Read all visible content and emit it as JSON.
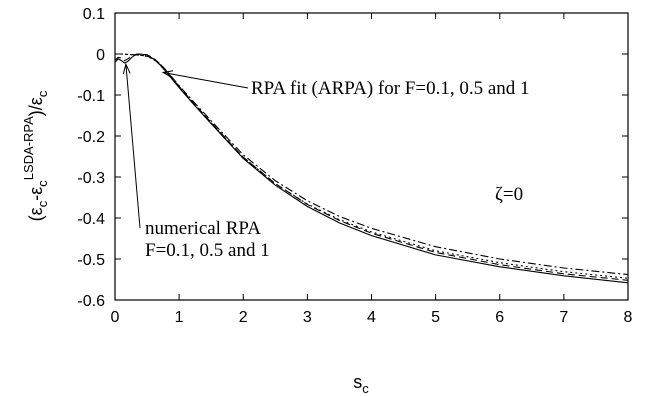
{
  "chart_data": {
    "type": "line",
    "xlabel": "s",
    "xlabel_sub": "c",
    "ylabel_parts": {
      "open": "(ε",
      "sub1": "c",
      "dash": "-ε",
      "sub2": "c",
      "sup": "LSDA-RPA",
      "close": ")/ε",
      "sub3": "c"
    },
    "xlim": [
      0,
      8
    ],
    "ylim": [
      -0.6,
      0.1
    ],
    "x_ticks": [
      0,
      1,
      2,
      3,
      4,
      5,
      6,
      7,
      8
    ],
    "x_tick_labels": [
      "0",
      "1",
      "2",
      "3",
      "4",
      "5",
      "6",
      "7",
      "8"
    ],
    "y_ticks": [
      0.1,
      0,
      -0.1,
      -0.2,
      -0.3,
      -0.4,
      -0.5,
      -0.6
    ],
    "y_tick_labels": [
      "0.1",
      "0",
      "-0.1",
      "-0.2",
      "-0.3",
      "-0.4",
      "-0.5",
      "-0.6"
    ],
    "grid": false,
    "annotations": {
      "rpa_fit": {
        "text": "RPA fit (ARPA) for F=0.1, 0.5 and 1",
        "arrow_to": [
          0.75,
          -0.045
        ]
      },
      "numerical_line1": {
        "text": "numerical RPA",
        "arrow_to": [
          0.17,
          -0.025
        ]
      },
      "numerical_line2": {
        "text": "F=0.1, 0.5 and 1"
      },
      "zeta": {
        "text": "ζ=0"
      }
    },
    "series": [
      {
        "style": "solid",
        "x": [
          0,
          0.05,
          0.1,
          0.15,
          0.2,
          0.25,
          0.3,
          0.35,
          0.4,
          0.5,
          0.6,
          0.7,
          0.8,
          1.0,
          1.2,
          1.5,
          2.0,
          2.5,
          3.0,
          3.5,
          4.0,
          5.0,
          6.0,
          7.0,
          8.0
        ],
        "y": [
          -0.02,
          -0.012,
          -0.016,
          -0.022,
          -0.018,
          -0.01,
          -0.004,
          -0.001,
          0,
          -0.003,
          -0.012,
          -0.026,
          -0.044,
          -0.082,
          -0.118,
          -0.17,
          -0.255,
          -0.32,
          -0.372,
          -0.412,
          -0.443,
          -0.49,
          -0.519,
          -0.541,
          -0.558
        ]
      },
      {
        "style": "dashed",
        "x": [
          0,
          0.05,
          0.1,
          0.15,
          0.2,
          0.25,
          0.3,
          0.35,
          0.4,
          0.5,
          0.6,
          0.7,
          0.8,
          1.0,
          1.2,
          1.5,
          2.0,
          2.5,
          3.0,
          3.5,
          4.0,
          5.0,
          6.0,
          7.0,
          8.0
        ],
        "y": [
          -0.015,
          -0.008,
          -0.01,
          -0.016,
          -0.012,
          -0.006,
          -0.002,
          0,
          0,
          -0.002,
          -0.01,
          -0.024,
          -0.041,
          -0.079,
          -0.115,
          -0.167,
          -0.252,
          -0.316,
          -0.367,
          -0.406,
          -0.437,
          -0.484,
          -0.514,
          -0.536,
          -0.552
        ]
      },
      {
        "style": "dotted",
        "x": [
          0,
          0.1,
          0.2,
          0.3,
          0.4,
          0.5,
          0.6,
          0.7,
          0.8,
          1.0,
          1.2,
          1.5,
          2.0,
          2.5,
          3.0,
          3.5,
          4.0,
          5.0,
          6.0,
          7.0,
          8.0
        ],
        "y": [
          0,
          0,
          -0.001,
          -0.002,
          -0.003,
          -0.006,
          -0.013,
          -0.026,
          -0.043,
          -0.08,
          -0.116,
          -0.168,
          -0.252,
          -0.316,
          -0.366,
          -0.404,
          -0.434,
          -0.48,
          -0.509,
          -0.531,
          -0.547
        ]
      },
      {
        "style": "dash-dot",
        "x": [
          0,
          0.1,
          0.2,
          0.3,
          0.4,
          0.5,
          0.6,
          0.7,
          0.8,
          1.0,
          1.2,
          1.5,
          2.0,
          2.5,
          3.0,
          3.5,
          4.0,
          5.0,
          6.0,
          7.0,
          8.0
        ],
        "y": [
          0,
          0,
          -0.001,
          -0.002,
          -0.003,
          -0.005,
          -0.012,
          -0.024,
          -0.04,
          -0.077,
          -0.112,
          -0.163,
          -0.246,
          -0.309,
          -0.358,
          -0.396,
          -0.425,
          -0.47,
          -0.5,
          -0.522,
          -0.538
        ]
      }
    ]
  }
}
